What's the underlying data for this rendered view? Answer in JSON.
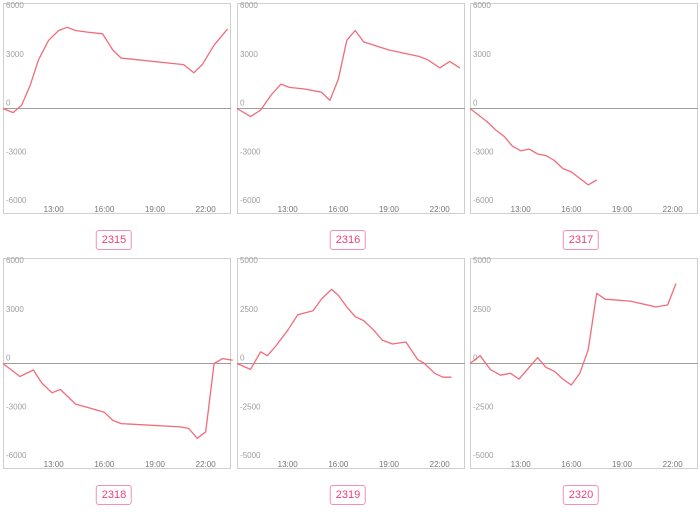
{
  "colors": {
    "line": "#f26b7a",
    "zero_line": "#9e9e9e",
    "frame": "#cfcfcf",
    "tag_border": "#f48fb1",
    "tag_text": "#ec407a"
  },
  "chart_data": [
    {
      "type": "line",
      "id": "2315",
      "ylim": [
        -6000,
        6000
      ],
      "yticks": [
        6000,
        3000,
        0,
        -3000,
        -6000
      ],
      "ytick_labels": [
        "6000",
        "3000",
        "0",
        "-3000",
        "-6000"
      ],
      "xlim": [
        10,
        23.5
      ],
      "xticks": [
        13,
        16,
        19,
        22
      ],
      "xtick_labels": [
        "13:00",
        "16:00",
        "19:00",
        "22:00"
      ],
      "x": [
        10.0,
        10.6,
        11.1,
        11.6,
        12.1,
        12.7,
        13.3,
        13.8,
        14.3,
        15.0,
        15.9,
        16.5,
        17.0,
        20.7,
        21.3,
        21.8,
        22.5,
        23.3
      ],
      "y": [
        0,
        -250,
        200,
        1400,
        3000,
        4200,
        4800,
        5000,
        4800,
        4700,
        4600,
        3600,
        3100,
        2700,
        2200,
        2700,
        3900,
        4900
      ]
    },
    {
      "type": "line",
      "id": "2316",
      "ylim": [
        -6000,
        6000
      ],
      "yticks": [
        6000,
        3000,
        0,
        -3000,
        -6000
      ],
      "ytick_labels": [
        "6000",
        "3000",
        "0",
        "-3000",
        "-6000"
      ],
      "xlim": [
        10,
        23.5
      ],
      "xticks": [
        13,
        16,
        19,
        22
      ],
      "xtick_labels": [
        "13:00",
        "16:00",
        "19:00",
        "22:00"
      ],
      "x": [
        10.0,
        10.8,
        11.4,
        12.0,
        12.6,
        13.1,
        14.0,
        15.0,
        15.5,
        16.0,
        16.5,
        17.0,
        17.5,
        19.0,
        20.8,
        21.3,
        22.0,
        22.6,
        23.2
      ],
      "y": [
        0,
        -500,
        -100,
        800,
        1500,
        1300,
        1200,
        1000,
        500,
        1800,
        4200,
        4800,
        4100,
        3600,
        3200,
        3000,
        2500,
        2900,
        2500
      ]
    },
    {
      "type": "line",
      "id": "2317",
      "ylim": [
        -6000,
        6000
      ],
      "yticks": [
        6000,
        3000,
        0,
        -3000,
        -6000
      ],
      "ytick_labels": [
        "6000",
        "3000",
        "0",
        "-3000",
        "-6000"
      ],
      "xlim": [
        10,
        23.5
      ],
      "xticks": [
        13,
        16,
        19,
        22
      ],
      "xtick_labels": [
        "13:00",
        "16:00",
        "19:00",
        "22:00"
      ],
      "x": [
        10.0,
        10.5,
        11.0,
        11.5,
        12.0,
        12.5,
        13.0,
        13.5,
        14.0,
        14.5,
        15.0,
        15.5,
        16.0,
        16.5,
        17.0,
        17.5
      ],
      "y": [
        0,
        -400,
        -800,
        -1300,
        -1700,
        -2300,
        -2600,
        -2500,
        -2800,
        -2900,
        -3200,
        -3700,
        -3900,
        -4300,
        -4700,
        -4400
      ]
    },
    {
      "type": "line",
      "id": "2318",
      "ylim": [
        -6000,
        6000
      ],
      "yticks": [
        6000,
        3000,
        0,
        -3000,
        -6000
      ],
      "ytick_labels": [
        "6000",
        "3000",
        "0",
        "-3000",
        "-6000"
      ],
      "xlim": [
        10,
        23.5
      ],
      "xticks": [
        13,
        16,
        19,
        22
      ],
      "xtick_labels": [
        "13:00",
        "16:00",
        "19:00",
        "22:00"
      ],
      "x": [
        10.0,
        11.0,
        11.8,
        12.3,
        12.9,
        13.4,
        14.3,
        15.0,
        16.0,
        16.5,
        17.0,
        20.5,
        21.0,
        21.5,
        22.0,
        22.5,
        23.0,
        23.6
      ],
      "y": [
        0,
        -800,
        -400,
        -1200,
        -1800,
        -1600,
        -2500,
        -2700,
        -3000,
        -3500,
        -3700,
        -3900,
        -4000,
        -4600,
        -4200,
        0,
        300,
        200
      ]
    },
    {
      "type": "line",
      "id": "2319",
      "ylim": [
        -5000,
        5000
      ],
      "yticks": [
        5000,
        2500,
        0,
        -2500,
        -5000
      ],
      "ytick_labels": [
        "5000",
        "2500",
        "0",
        "-2500",
        "-5000"
      ],
      "xlim": [
        10,
        23.5
      ],
      "xticks": [
        13,
        16,
        19,
        22
      ],
      "xtick_labels": [
        "13:00",
        "16:00",
        "19:00",
        "22:00"
      ],
      "x": [
        10.0,
        10.8,
        11.4,
        11.8,
        12.3,
        13.0,
        13.6,
        14.5,
        15.0,
        15.6,
        16.0,
        16.5,
        17.0,
        17.5,
        18.1,
        18.6,
        19.2,
        20.0,
        20.7,
        21.1,
        21.7,
        22.2,
        22.7
      ],
      "y": [
        0,
        -300,
        600,
        400,
        900,
        1700,
        2500,
        2700,
        3300,
        3800,
        3500,
        2900,
        2400,
        2200,
        1700,
        1200,
        1000,
        1100,
        200,
        0,
        -500,
        -700,
        -700
      ]
    },
    {
      "type": "line",
      "id": "2320",
      "ylim": [
        -5000,
        5000
      ],
      "yticks": [
        5000,
        2500,
        0,
        -2500,
        -5000
      ],
      "ytick_labels": [
        "5000",
        "2500",
        "0",
        "-2500",
        "-5000"
      ],
      "xlim": [
        10,
        23.5
      ],
      "xticks": [
        13,
        16,
        19,
        22
      ],
      "xtick_labels": [
        "13:00",
        "16:00",
        "19:00",
        "22:00"
      ],
      "x": [
        10.0,
        10.6,
        11.2,
        11.8,
        12.4,
        12.9,
        13.5,
        14.0,
        14.5,
        15.0,
        15.5,
        16.0,
        16.5,
        17.0,
        17.5,
        18.0,
        19.5,
        21.0,
        21.7,
        22.2
      ],
      "y": [
        0,
        400,
        -300,
        -600,
        -500,
        -800,
        -200,
        300,
        -200,
        -400,
        -800,
        -1100,
        -500,
        700,
        3600,
        3300,
        3200,
        2900,
        3000,
        4100
      ]
    }
  ]
}
